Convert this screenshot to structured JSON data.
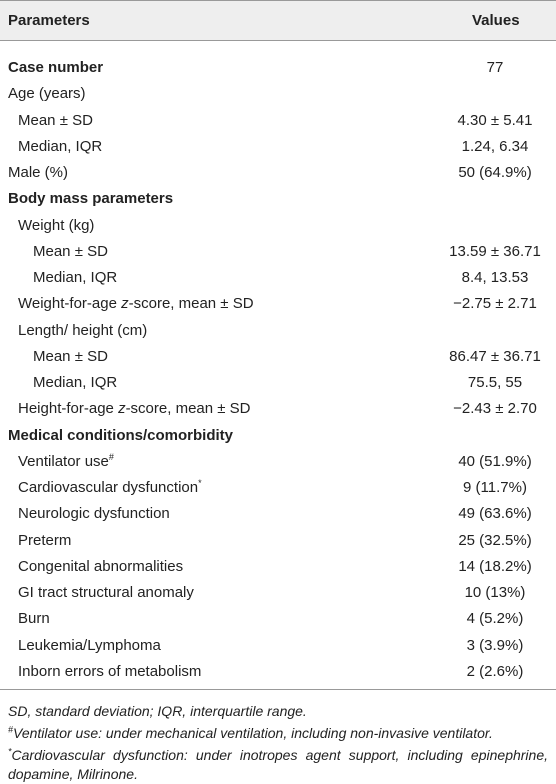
{
  "table": {
    "header": [
      "Parameters",
      "Values"
    ],
    "rows": [
      {
        "label": "Case number",
        "value": "77"
      },
      {
        "label": "Age (years)"
      },
      {
        "label": "Mean ± SD",
        "value": "4.30 ± 5.41"
      },
      {
        "label": "Median, IQR",
        "value": "1.24, 6.34"
      },
      {
        "label": "Male (%)",
        "value": "50 (64.9%)"
      },
      {
        "label": "Body mass parameters"
      },
      {
        "label": "Weight (kg)"
      },
      {
        "label": "Mean ± SD",
        "value": "13.59 ± 36.71"
      },
      {
        "label": "Median, IQR",
        "value": "8.4, 13.53"
      },
      {
        "label": [
          "Weight-for-age ",
          "z",
          "-score, mean ± SD"
        ],
        "value": "−2.75 ± 2.71"
      },
      {
        "label": "Length/ height (cm)"
      },
      {
        "label": "Mean ± SD",
        "value": "86.47 ± 36.71"
      },
      {
        "label": "Median, IQR",
        "value": "75.5, 55"
      },
      {
        "label": [
          "Height-for-age ",
          "z",
          "-score, mean ± SD"
        ],
        "value": "−2.43 ± 2.70"
      },
      {
        "label": "Medical conditions/comorbidity"
      },
      {
        "label": "Ventilator use",
        "note": "#",
        "value": "40 (51.9%)"
      },
      {
        "label": "Cardiovascular dysfunction",
        "note": "*",
        "value": "9 (11.7%)"
      },
      {
        "label": "Neurologic dysfunction",
        "value": "49 (63.6%)"
      },
      {
        "label": "Preterm",
        "value": "25 (32.5%)"
      },
      {
        "label": "Congenital abnormalities",
        "value": "14 (18.2%)"
      },
      {
        "label": "GI tract structural anomaly",
        "value": "10 (13%)"
      },
      {
        "label": "Burn",
        "value": "4 (5.2%)"
      },
      {
        "label": "Leukemia/Lymphoma",
        "value": "3 (3.9%)"
      },
      {
        "label": "Inborn errors of metabolism",
        "value": "2 (2.6%)"
      }
    ],
    "footnotes": [
      {
        "text": "SD, standard deviation; IQR, interquartile range."
      },
      {
        "mark": "#",
        "text": "Ventilator use: under mechanical ventilation, including non-invasive ventilator."
      },
      {
        "mark": "*",
        "text": "Cardiovascular dysfunction: under inotropes agent support, including epinephrine, dopamine, Milrinone."
      }
    ]
  }
}
